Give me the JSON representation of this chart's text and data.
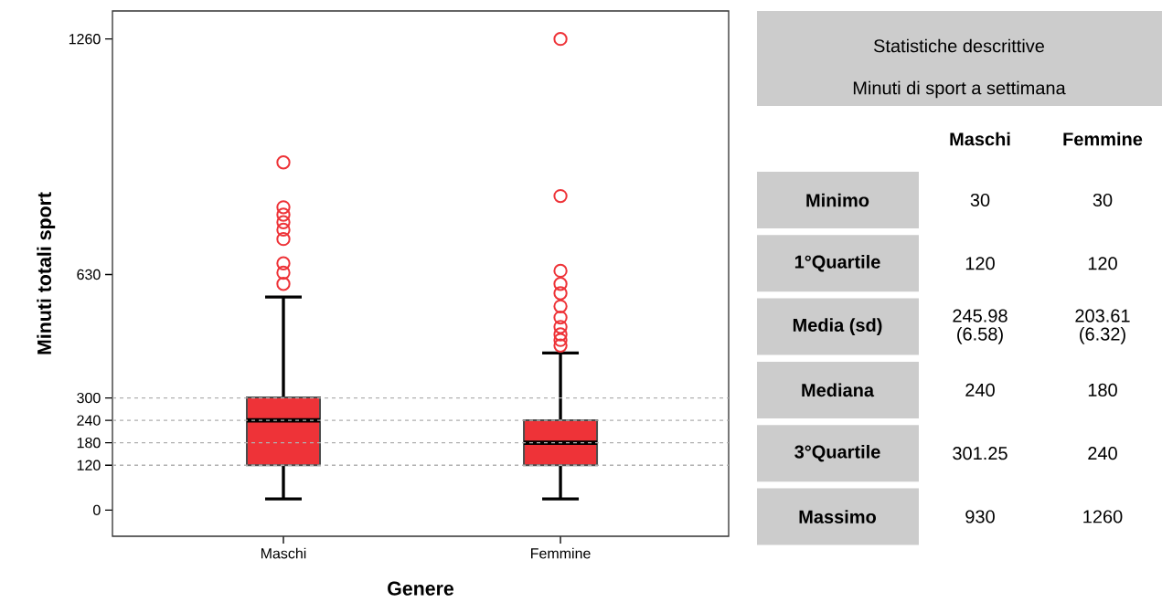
{
  "chart_data": [
    {
      "type": "box",
      "xlabel": "Genere",
      "ylabel": "Minuti totali  sport",
      "categories": [
        "Maschi",
        "Femmine"
      ],
      "ylim": [
        -70,
        1335
      ],
      "yticks": [
        0,
        120,
        180,
        240,
        300,
        630,
        1260
      ],
      "grid": false,
      "marker": "circle",
      "series": [
        {
          "color": "#ee3338",
          "boxes": [
            {
              "low": 30,
              "q1": 120,
              "median": 240,
              "q3": 301.25,
              "high": 570,
              "outliers": [
                930,
                810,
                790,
                770,
                750,
                725,
                660,
                635,
                605
              ]
            },
            {
              "low": 30,
              "q1": 120,
              "median": 180,
              "q3": 240,
              "high": 420,
              "outliers": [
                1260,
                840,
                640,
                605,
                580,
                545,
                515,
                490,
                470,
                455,
                440
              ]
            }
          ]
        }
      ],
      "ref_lines": [
        {
          "axis": "y",
          "value": 120,
          "color": "#b0b0b0",
          "line_style": "dashed"
        },
        {
          "axis": "y",
          "value": 180,
          "color": "#b0b0b0",
          "line_style": "dashed"
        },
        {
          "axis": "y",
          "value": 240,
          "color": "#b0b0b0",
          "line_style": "dashed"
        },
        {
          "axis": "y",
          "value": 300,
          "color": "#b0b0b0",
          "line_style": "dashed"
        }
      ]
    },
    {
      "type": "other",
      "title": "Statistiche descrittive",
      "subtitle": "Minuti di sport a settimana",
      "categories": [
        "Maschi",
        "Femmine"
      ],
      "y_categories": [
        "Minimo",
        "1°Quartile",
        "Media (sd)",
        "Mediana",
        "3°Quartile",
        "Massimo"
      ],
      "cell_labels": [
        [
          "30",
          "30"
        ],
        [
          "120",
          "120"
        ],
        [
          "245.98 (6.58)",
          "203.61 (6.32)"
        ],
        [
          "240",
          "180"
        ],
        [
          "301.25",
          "240"
        ],
        [
          "930",
          "1260"
        ]
      ]
    }
  ]
}
